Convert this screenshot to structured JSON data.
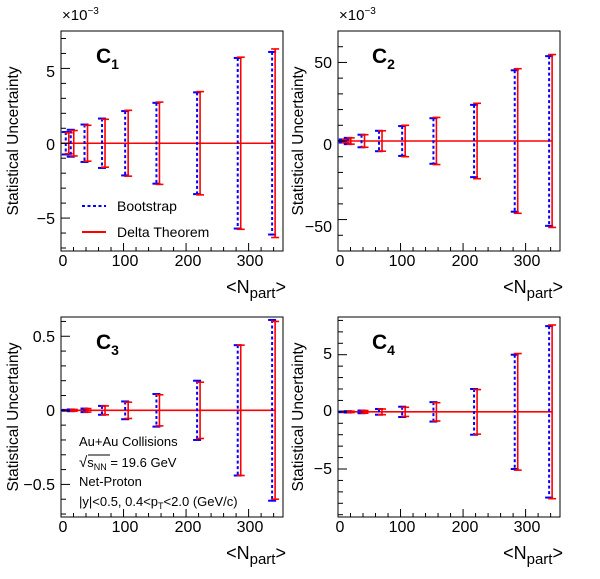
{
  "chart_data": [
    {
      "type": "errorbar",
      "panel_label": "C",
      "panel_label_sub": "1",
      "ylabel": "Statistical Uncertainty",
      "xlabel_main": "<N",
      "xlabel_sub": "part",
      "xlabel_end": ">",
      "multiplier_base": "×10",
      "multiplier_exp": "−3",
      "xlim": [
        0,
        355
      ],
      "ylim": [
        -7.2,
        7.5
      ],
      "xticks": [
        0,
        100,
        200,
        300
      ],
      "xtick_labels": [
        "0",
        "100",
        "200",
        "300"
      ],
      "yticks": [
        -5,
        0,
        5
      ],
      "ytick_labels": [
        "−5",
        "0",
        "5"
      ],
      "x": [
        10,
        18,
        40,
        68,
        105,
        155,
        220,
        285,
        340
      ],
      "series": [
        {
          "name": "Bootstrap",
          "style": "dashed",
          "color": "#0000ff",
          "values": [
            0.75,
            0.9,
            1.25,
            1.65,
            2.15,
            2.7,
            3.4,
            5.7,
            6.1
          ]
        },
        {
          "name": "Delta Theorem",
          "style": "solid",
          "color": "#ff0000",
          "values": [
            0.7,
            0.85,
            1.2,
            1.6,
            2.2,
            2.75,
            3.45,
            5.75,
            6.3
          ]
        }
      ]
    },
    {
      "type": "errorbar",
      "panel_label": "C",
      "panel_label_sub": "2",
      "ylabel": "Statistical Uncertainty",
      "xlabel_main": "<N",
      "xlabel_sub": "part",
      "xlabel_end": ">",
      "multiplier_base": "×10",
      "multiplier_exp": "−3",
      "xlim": [
        0,
        355
      ],
      "ylim": [
        -70,
        70
      ],
      "xticks": [
        0,
        100,
        200,
        300
      ],
      "xtick_labels": [
        "0",
        "100",
        "200",
        "300"
      ],
      "yticks": [
        -50,
        0,
        50
      ],
      "ytick_labels": [
        "−50",
        "0",
        "50"
      ],
      "x": [
        10,
        18,
        40,
        68,
        105,
        155,
        220,
        285,
        340
      ],
      "series": [
        {
          "name": "Bootstrap",
          "style": "dashed",
          "color": "#0000ff",
          "values": [
            1,
            2,
            4,
            6.5,
            9.5,
            14.5,
            23,
            45,
            54
          ]
        },
        {
          "name": "Delta Theorem",
          "style": "solid",
          "color": "#ff0000",
          "values": [
            1,
            2,
            4,
            6.5,
            10,
            15,
            24,
            46,
            55
          ]
        }
      ]
    },
    {
      "type": "errorbar",
      "panel_label": "C",
      "panel_label_sub": "3",
      "ylabel": "Statistical Uncertainty",
      "xlabel_main": "<N",
      "xlabel_sub": "part",
      "xlabel_end": ">",
      "xlim": [
        0,
        355
      ],
      "ylim": [
        -0.72,
        0.63
      ],
      "xticks": [
        0,
        100,
        200,
        300
      ],
      "xtick_labels": [
        "0",
        "100",
        "200",
        "300"
      ],
      "yticks": [
        -0.5,
        0,
        0.5
      ],
      "ytick_labels": [
        "−0.5",
        "0",
        "0.5"
      ],
      "x": [
        10,
        18,
        40,
        68,
        105,
        155,
        220,
        285,
        340
      ],
      "series": [
        {
          "name": "Bootstrap",
          "style": "dashed",
          "color": "#0000ff",
          "values": [
            0.003,
            0.006,
            0.012,
            0.03,
            0.06,
            0.11,
            0.2,
            0.44,
            0.61
          ]
        },
        {
          "name": "Delta Theorem",
          "style": "solid",
          "color": "#ff0000",
          "values": [
            0.003,
            0.006,
            0.012,
            0.03,
            0.055,
            0.105,
            0.19,
            0.44,
            0.6
          ]
        }
      ]
    },
    {
      "type": "errorbar",
      "panel_label": "C",
      "panel_label_sub": "4",
      "ylabel": "Statistical Uncertainty",
      "xlabel_main": "<N",
      "xlabel_sub": "part",
      "xlabel_end": ">",
      "xlim": [
        0,
        355
      ],
      "ylim": [
        -9.2,
        8.3
      ],
      "xticks": [
        0,
        100,
        200,
        300
      ],
      "xtick_labels": [
        "0",
        "100",
        "200",
        "300"
      ],
      "yticks": [
        -5,
        0,
        5
      ],
      "ytick_labels": [
        "−5",
        "0",
        "5"
      ],
      "x": [
        10,
        18,
        40,
        68,
        105,
        155,
        220,
        285,
        340
      ],
      "series": [
        {
          "name": "Bootstrap",
          "style": "dashed",
          "color": "#0000ff",
          "values": [
            0.03,
            0.06,
            0.12,
            0.25,
            0.45,
            0.85,
            2.0,
            5.0,
            7.5
          ]
        },
        {
          "name": "Delta Theorem",
          "style": "solid",
          "color": "#ff0000",
          "values": [
            0.03,
            0.06,
            0.12,
            0.25,
            0.4,
            0.8,
            1.95,
            5.1,
            7.6
          ]
        }
      ]
    }
  ],
  "legend": {
    "placement": "bottom-left of C1 panel",
    "items": [
      {
        "label": "Bootstrap",
        "style": "dashed",
        "color": "#0000ff"
      },
      {
        "label": "Delta Theorem",
        "style": "solid",
        "color": "#ff0000"
      }
    ]
  },
  "annotation": {
    "line1": "Au+Au Collisions",
    "line2_sqrt_s": "s",
    "line2_sub": "NN",
    "line2_rest": " = 19.6 GeV",
    "line3": "Net-Proton",
    "line4_a": "|y|<0.5, 0.4<p",
    "line4_sub": "T",
    "line4_b": "<2.0 (GeV/c)"
  },
  "colors": {
    "bootstrap": "#0000ff",
    "delta": "#ff0000",
    "axis": "#000000"
  }
}
